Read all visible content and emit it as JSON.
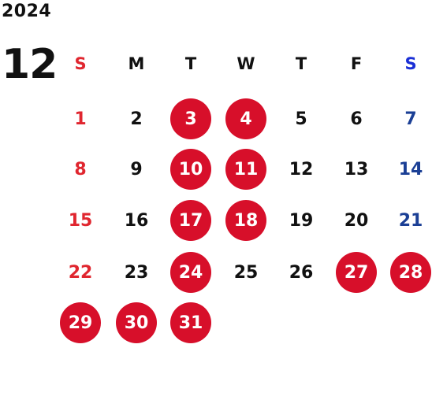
{
  "calendar": {
    "year": "2024",
    "month": "12",
    "weekdays": [
      "S",
      "M",
      "T",
      "W",
      "T",
      "F",
      "S"
    ],
    "weeks": [
      [
        "",
        "",
        "",
        "",
        "",
        "",
        ""
      ],
      [
        "1",
        "2",
        "3",
        "4",
        "5",
        "6",
        "7"
      ],
      [
        "8",
        "9",
        "10",
        "11",
        "12",
        "13",
        "14"
      ],
      [
        "15",
        "16",
        "17",
        "18",
        "19",
        "20",
        "21"
      ],
      [
        "22",
        "23",
        "24",
        "25",
        "26",
        "27",
        "28"
      ],
      [
        "29",
        "30",
        "31",
        "",
        "",
        "",
        ""
      ]
    ],
    "highlighted_days": [
      3,
      4,
      10,
      11,
      17,
      18,
      24,
      27,
      28,
      29,
      30,
      31
    ],
    "colors": {
      "text": "#111111",
      "sunday": "#e0262f",
      "saturday": "#1b3f95",
      "saturday_header": "#1a2fd6",
      "highlight": "#d70f2a",
      "highlight_text": "#ffffff"
    }
  }
}
